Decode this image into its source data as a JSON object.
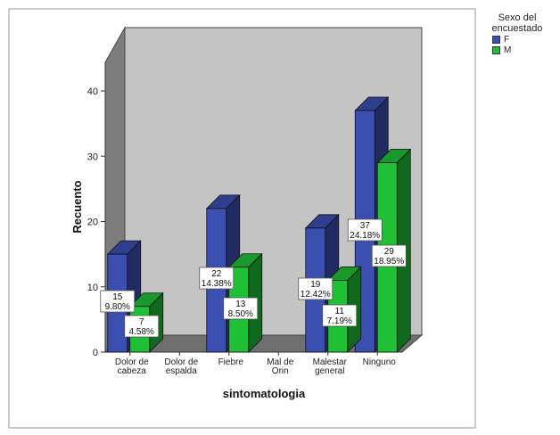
{
  "chart_data": {
    "type": "bar",
    "title": "",
    "xlabel": "sintomatologia",
    "ylabel": "Recuento",
    "ylim": [
      0,
      45
    ],
    "yticks": [
      0,
      10,
      20,
      30,
      40
    ],
    "categories": [
      [
        "Dolor de",
        "cabeza"
      ],
      [
        "Dolor de",
        "espalda"
      ],
      [
        "Fiebre"
      ],
      [
        "Mal de",
        "Orin"
      ],
      [
        "Malestar",
        "general"
      ],
      [
        "Ninguno"
      ]
    ],
    "legend": {
      "title": [
        "Sexo del",
        "encuestado"
      ],
      "position": "top-right"
    },
    "series": [
      {
        "name": "F",
        "color": "#3b4fb0",
        "values": [
          15,
          null,
          22,
          null,
          19,
          37
        ],
        "labels": [
          [
            "15",
            "9.80%"
          ],
          null,
          [
            "22",
            "14.38%"
          ],
          null,
          [
            "19",
            "12.42%"
          ],
          [
            "37",
            "24.18%"
          ]
        ]
      },
      {
        "name": "M",
        "color": "#1fbf36",
        "values": [
          7,
          null,
          13,
          null,
          11,
          29
        ],
        "labels": [
          [
            "7",
            "4.58%"
          ],
          null,
          [
            "13",
            "8.50%"
          ],
          null,
          [
            "11",
            "7.19%"
          ],
          [
            "29",
            "18.95%"
          ]
        ]
      }
    ],
    "style": {
      "plot_background": "#c4c4c4",
      "frame_color": "#9a9a9a",
      "three_d": true,
      "grid": false
    }
  }
}
